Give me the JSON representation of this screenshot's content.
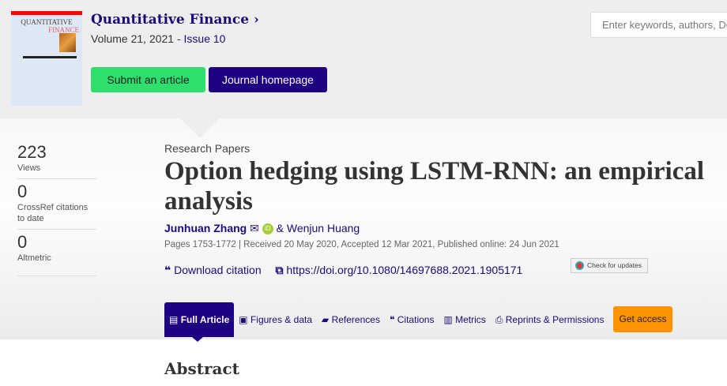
{
  "journal": {
    "cover_title_1": "QUANTITATIVE",
    "cover_title_2": "FINANCE",
    "title": "Quantitative Finance ›",
    "volume": "Volume 21, 2021 - ",
    "issue": "Issue 10",
    "submit_label": "Submit an article",
    "homepage_label": "Journal homepage"
  },
  "search": {
    "placeholder": "Enter keywords, authors, DOI"
  },
  "metrics": [
    {
      "value": "223",
      "label": "Views"
    },
    {
      "value": "0",
      "label": "CrossRef citations to date"
    },
    {
      "value": "0",
      "label": "Altmetric"
    }
  ],
  "article": {
    "category": "Research Papers",
    "title": "Option hedging using LSTM-RNN: an empirical analysis",
    "author1": "Junhuan Zhang",
    "author_sep": "&",
    "author2": "Wenjun Huang",
    "pages_info": "Pages 1753-1772 | Received 20 May 2020, Accepted 12 Mar 2021, Published online: 24 Jun 2021",
    "download_citation": "Download citation",
    "doi": "https://doi.org/10.1080/14697688.2021.1905171",
    "check_updates": "Check for updates"
  },
  "tabs": [
    {
      "label": "Full Article",
      "icon": "document-icon"
    },
    {
      "label": "Figures & data",
      "icon": "image-icon"
    },
    {
      "label": "References",
      "icon": "book-icon"
    },
    {
      "label": "Citations",
      "icon": "quote-icon"
    },
    {
      "label": "Metrics",
      "icon": "bar-chart-icon"
    },
    {
      "label": "Reprints & Permissions",
      "icon": "print-icon"
    }
  ],
  "get_access": "Get access",
  "abstract_heading": "Abstract",
  "colors": {
    "brand": "#1e0080",
    "submit": "#2edf6e",
    "access": "#ff9400"
  }
}
